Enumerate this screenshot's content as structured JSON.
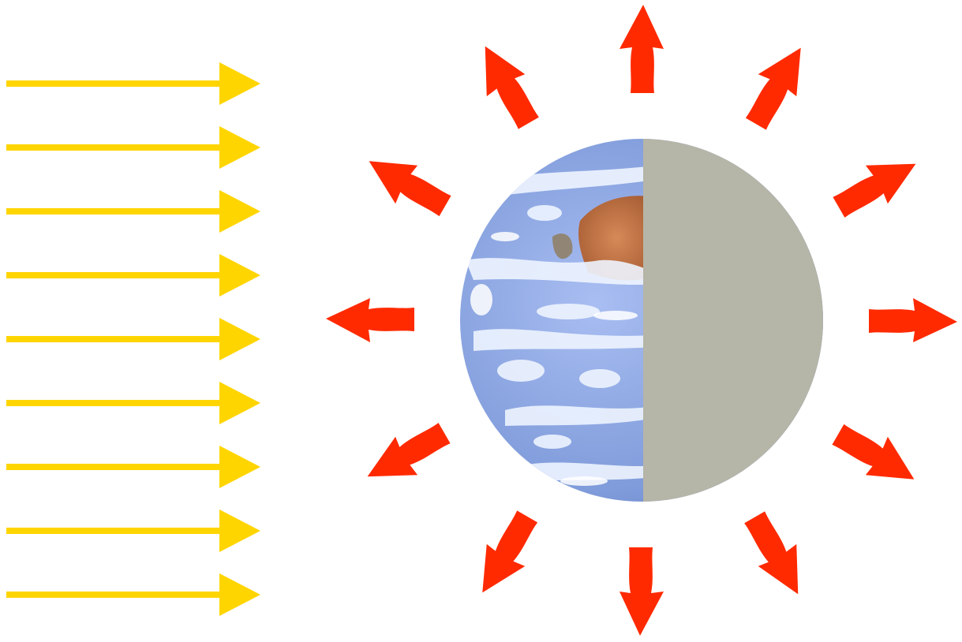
{
  "diagram": {
    "type": "radiation-balance",
    "incoming": {
      "icon": "yellow-arrow-right",
      "count": 9,
      "direction": "right",
      "color": "#FFD500"
    },
    "outgoing": {
      "icon": "red-arrow",
      "count": 12,
      "color": "#FF2A00"
    },
    "earth": {
      "icon": "earth-half-lit-globe",
      "day_side": "left",
      "night_side": "right",
      "night_color": "#B5B5A8",
      "ocean_color": "#7C9BD8",
      "cloud_color": "#E4EEFF",
      "land_color": "#C27A48"
    }
  }
}
